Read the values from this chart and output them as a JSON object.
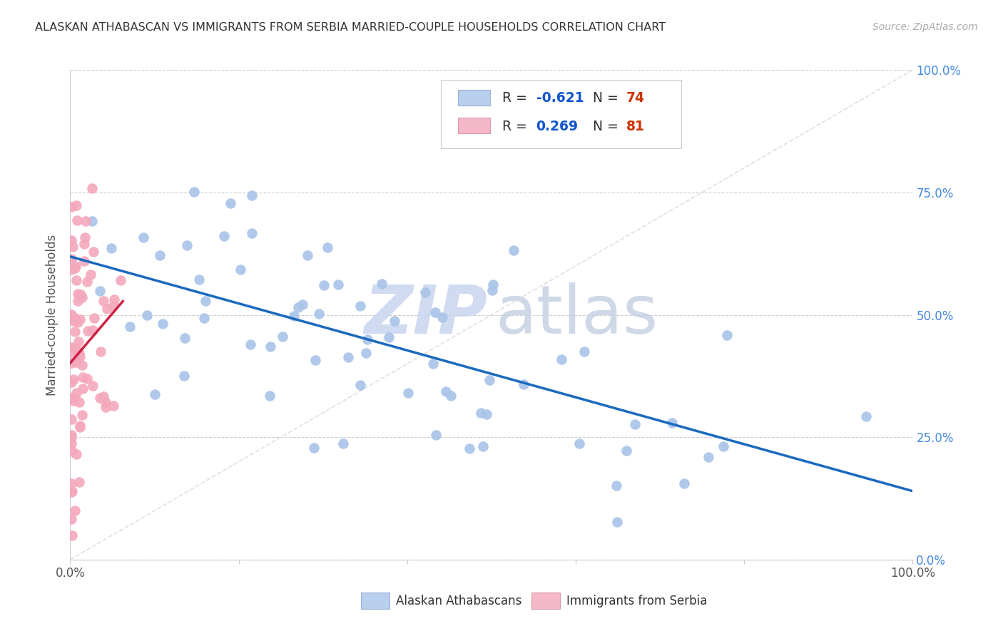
{
  "title": "ALASKAN ATHABASCAN VS IMMIGRANTS FROM SERBIA MARRIED-COUPLE HOUSEHOLDS CORRELATION CHART",
  "source": "Source: ZipAtlas.com",
  "ylabel": "Married-couple Households",
  "blue_R": -0.621,
  "blue_N": 74,
  "pink_R": 0.269,
  "pink_N": 81,
  "blue_dot_color": "#a8c4e8",
  "pink_dot_color": "#f4a8bb",
  "blue_line_color": "#1a6abf",
  "pink_line_color": "#cc2244",
  "blue_legend_color": "#b8d0ee",
  "pink_legend_color": "#f4b8c8",
  "background_color": "#ffffff",
  "grid_color": "#cccccc",
  "diag_color": "#dddddd",
  "right_tick_color": "#4488dd",
  "legend_R_color": "#1155cc",
  "legend_N_color": "#cc3300",
  "title_color": "#333333",
  "source_color": "#aaaaaa",
  "ylabel_color": "#555555",
  "watermark_ZIP_color": "#c8d4ee",
  "watermark_atlas_color": "#c0cce0",
  "seed": 42
}
